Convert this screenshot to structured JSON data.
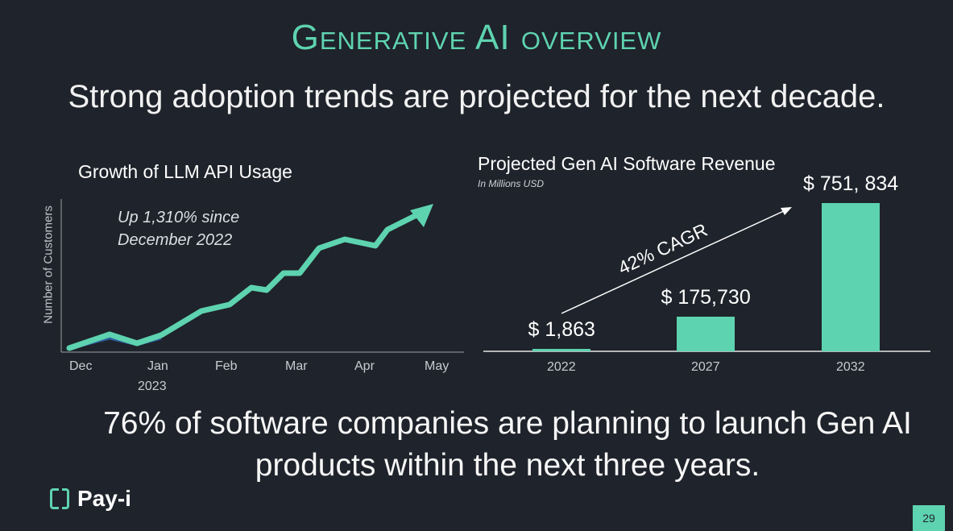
{
  "slide": {
    "title": "Generative AI overview",
    "subtitle": "Strong adoption trends are projected for the next decade.",
    "bottom_text": "76% of software companies are planning to launch Gen AI products within the next three years.",
    "logo_text": "Pay-i",
    "page_number": "29"
  },
  "colors": {
    "accent": "#5ed3b0",
    "background": "#1f232b"
  },
  "chart_data": [
    {
      "type": "line",
      "title": "Growth of LLM API Usage",
      "ylabel": "Number of Customers",
      "annotation": "Up 1,310% since December 2022",
      "x_tick_labels": [
        "Dec",
        "Jan",
        "Feb",
        "Mar",
        "Apr",
        "May"
      ],
      "x_sublabel": "2023",
      "grid": false
    },
    {
      "type": "bar",
      "title": "Projected Gen AI Software Revenue",
      "subtitle": "In Millions USD",
      "categories": [
        "2022",
        "2027",
        "2032"
      ],
      "values": [
        1863,
        175730,
        751834
      ],
      "value_labels": [
        "$ 1,863",
        "$ 175,730",
        "$ 751, 834"
      ],
      "annotation": "42% CAGR",
      "grid": false
    }
  ]
}
